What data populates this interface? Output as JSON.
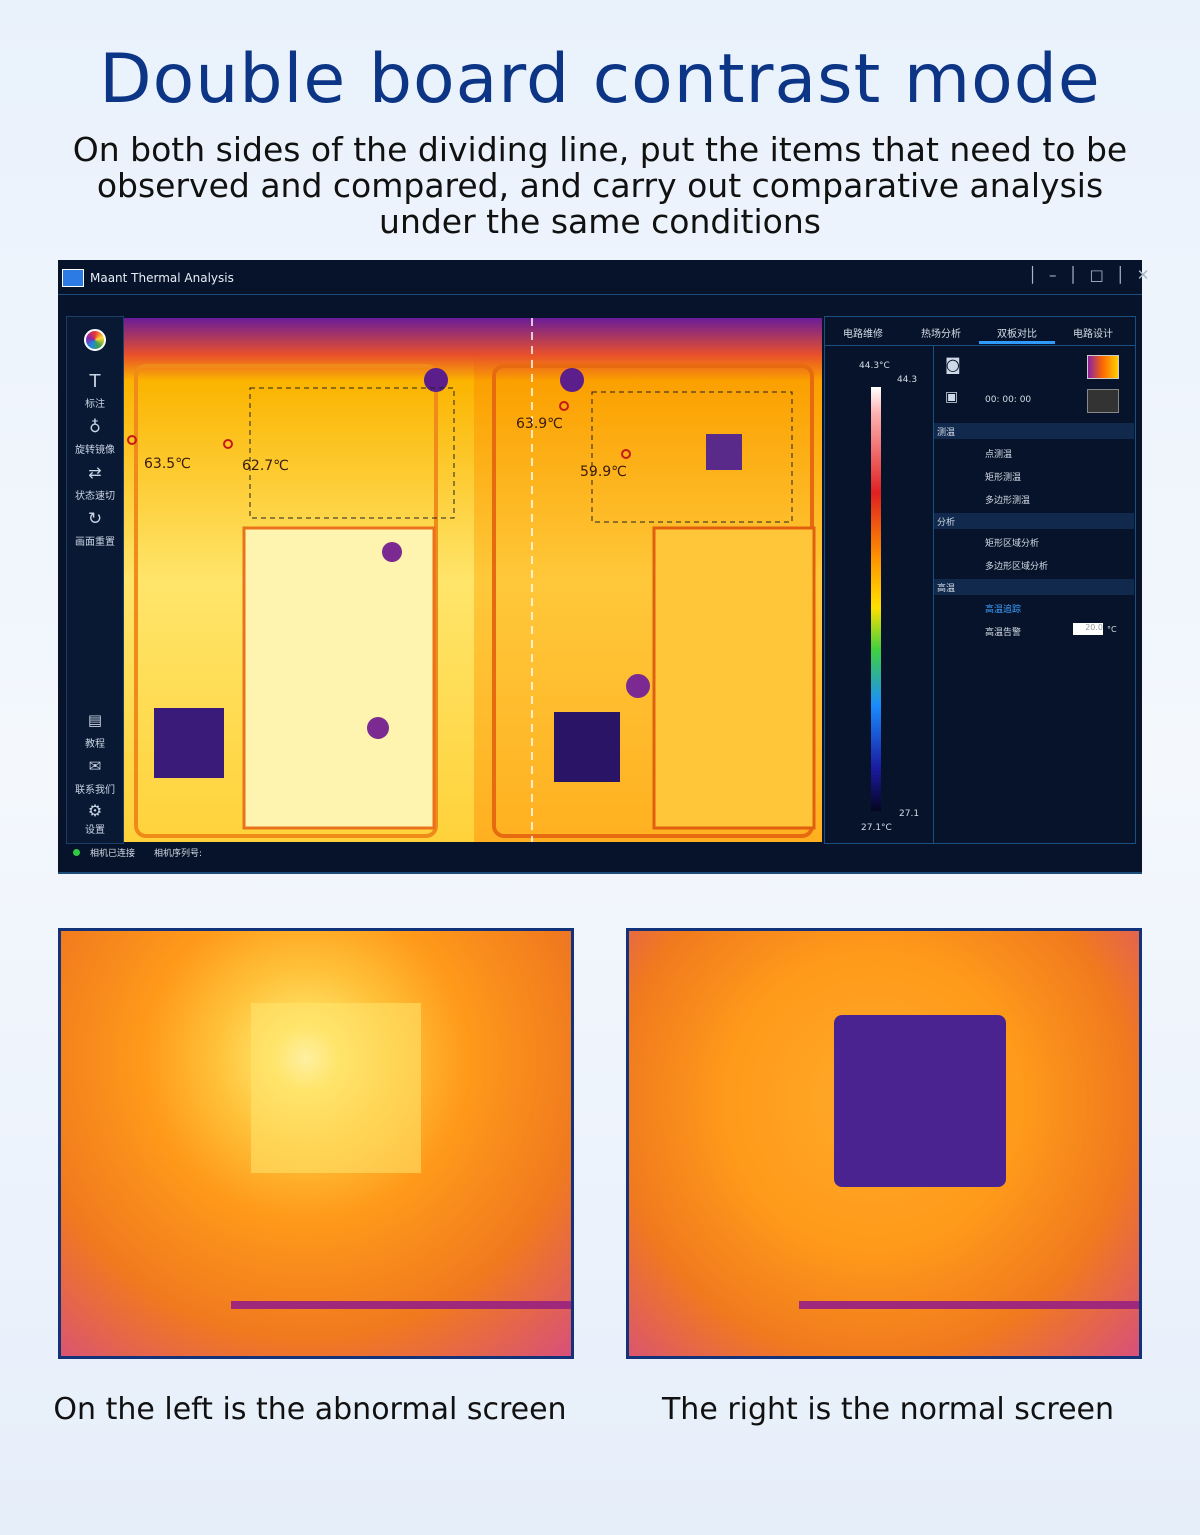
{
  "header": {
    "title": "Double board contrast mode",
    "subtitle": "On both sides of the dividing line, put the items that need to be observed and compared, and carry out comparative analysis under the same conditions"
  },
  "window": {
    "title": "Maant Thermal Analysis",
    "toolbar": [
      "标注",
      "旋转镜像",
      "状态速切",
      "画面重置"
    ],
    "bottom_tools": [
      "教程",
      "联系我们",
      "设置"
    ],
    "readings": [
      "63.5℃",
      "62.7℃",
      "63.9℃",
      "59.9℃"
    ],
    "tabs": [
      "电路维修",
      "热场分析",
      "双板对比",
      "电路设计"
    ],
    "scale": {
      "max_label": "44.3°C",
      "max": "44.3",
      "min": "27.1",
      "min_label": "27.1°C"
    },
    "timer": "00: 00: 00",
    "sections": [
      {
        "title": "测温",
        "items": [
          "点测温",
          "矩形测温",
          "多边形测温"
        ]
      },
      {
        "title": "分析",
        "items": [
          "矩形区域分析",
          "多边形区域分析"
        ]
      },
      {
        "title": "高温",
        "items": [
          "高温追踪",
          "高温告警"
        ]
      }
    ],
    "alarm_value": "20.0",
    "alarm_unit": "°C",
    "status": [
      "相机已连接",
      "相机序列号:"
    ]
  },
  "captions": [
    "On the left is the abnormal screen",
    "The right is the normal screen"
  ]
}
